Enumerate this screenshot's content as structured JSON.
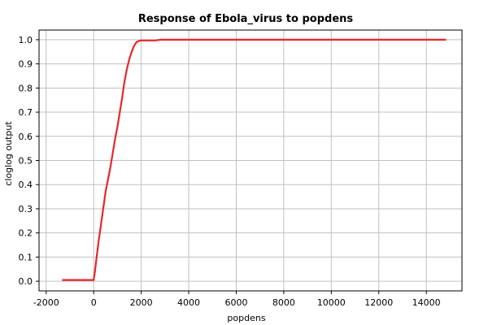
{
  "chart_data": {
    "type": "line",
    "title": "Response of Ebola_virus to popdens",
    "xlabel": "popdens",
    "ylabel": "cloglog output",
    "xlim": [
      -2300,
      15500
    ],
    "ylim": [
      -0.04,
      1.04
    ],
    "xticks": [
      -2000,
      0,
      2000,
      4000,
      6000,
      8000,
      10000,
      12000,
      14000
    ],
    "xtick_labels": [
      "-2000",
      "0",
      "2000",
      "4000",
      "6000",
      "8000",
      "10000",
      "12000",
      "14000"
    ],
    "yticks": [
      0.0,
      0.1,
      0.2,
      0.3,
      0.4,
      0.5,
      0.6,
      0.7,
      0.8,
      0.9,
      1.0
    ],
    "ytick_labels": [
      "0.0",
      "0.1",
      "0.2",
      "0.3",
      "0.4",
      "0.5",
      "0.6",
      "0.7",
      "0.8",
      "0.9",
      "1.0"
    ],
    "grid": true,
    "legend": "none",
    "series": [
      {
        "color": "#e8262b",
        "x": [
          -1300,
          -600,
          0,
          50,
          100,
          150,
          200,
          300,
          400,
          500,
          600,
          700,
          800,
          900,
          1000,
          1100,
          1200,
          1300,
          1400,
          1500,
          1600,
          1700,
          1800,
          1900,
          2000,
          2100,
          2300,
          2600,
          2800,
          3000,
          6000,
          10000,
          14800
        ],
        "y": [
          0.005,
          0.005,
          0.005,
          0.04,
          0.08,
          0.12,
          0.16,
          0.23,
          0.3,
          0.37,
          0.42,
          0.47,
          0.53,
          0.59,
          0.64,
          0.7,
          0.76,
          0.83,
          0.88,
          0.92,
          0.95,
          0.975,
          0.99,
          0.995,
          0.997,
          0.997,
          0.997,
          0.997,
          1.0,
          1.0,
          1.0,
          1.0,
          1.0
        ]
      }
    ]
  }
}
